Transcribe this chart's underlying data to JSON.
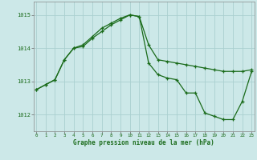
{
  "line1_x": [
    0,
    1,
    2,
    3,
    4,
    5,
    6,
    7,
    8,
    9,
    10,
    11,
    12,
    13,
    14,
    15,
    16,
    17,
    18,
    19,
    20,
    21,
    22,
    23
  ],
  "line1_y": [
    1012.75,
    1012.9,
    1013.05,
    1013.65,
    1014.0,
    1014.05,
    1014.3,
    1014.5,
    1014.7,
    1014.85,
    1015.0,
    1014.95,
    1014.1,
    1013.65,
    1013.6,
    1013.55,
    1013.5,
    1013.45,
    1013.4,
    1013.35,
    1013.3,
    1013.3,
    1013.3,
    1013.35
  ],
  "line2_x": [
    0,
    1,
    2,
    3,
    4,
    5,
    6,
    7,
    8,
    9,
    10,
    11,
    12,
    13,
    14,
    15,
    16,
    17,
    18,
    19,
    20,
    21,
    22,
    23
  ],
  "line2_y": [
    1012.75,
    1012.9,
    1013.05,
    1013.65,
    1014.0,
    1014.1,
    1014.35,
    1014.6,
    1014.75,
    1014.9,
    1015.0,
    1014.95,
    1013.55,
    1013.2,
    1013.1,
    1013.05,
    1012.65,
    1012.65,
    1012.05,
    1011.95,
    1011.85,
    1011.85,
    1012.4,
    1013.3
  ],
  "line_color": "#1a6b1a",
  "bg_color": "#cce8e8",
  "grid_color": "#aad0d0",
  "ylabel_ticks": [
    1012,
    1013,
    1014,
    1015
  ],
  "xlabel_ticks": [
    0,
    1,
    2,
    3,
    4,
    5,
    6,
    7,
    8,
    9,
    10,
    11,
    12,
    13,
    14,
    15,
    16,
    17,
    18,
    19,
    20,
    21,
    22,
    23
  ],
  "xlabel": "Graphe pression niveau de la mer (hPa)",
  "ylim": [
    1011.5,
    1015.4
  ],
  "xlim": [
    -0.3,
    23.3
  ]
}
